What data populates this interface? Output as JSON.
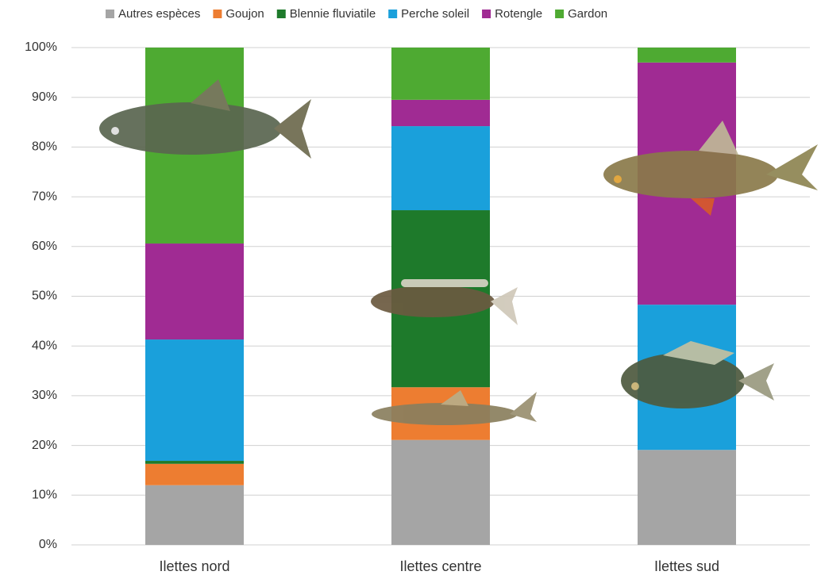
{
  "chart_data": {
    "type": "stacked_bar",
    "categories": [
      "Ilettes nord",
      "Ilettes centre",
      "Ilettes sud"
    ],
    "series": [
      {
        "name": "Autres espèces",
        "color": "#a5a5a5",
        "values": [
          12.0,
          21.1,
          19.1
        ]
      },
      {
        "name": "Goujon",
        "color": "#ed7d31",
        "values": [
          4.3,
          10.6,
          0
        ]
      },
      {
        "name": "Blennie fluviatile",
        "color": "#1e7a2b",
        "values": [
          0.6,
          35.6,
          0
        ]
      },
      {
        "name": "Perche soleil",
        "color": "#1aa0db",
        "values": [
          24.4,
          16.9,
          29.2
        ]
      },
      {
        "name": "Rotengle",
        "color": "#a02b93",
        "values": [
          19.3,
          5.3,
          48.7
        ]
      },
      {
        "name": "Gardon",
        "color": "#4eaa32",
        "values": [
          39.4,
          10.5,
          3.0
        ]
      }
    ],
    "ylim": [
      0,
      100
    ],
    "yticks": [
      {
        "value": 0,
        "label": "0%"
      },
      {
        "value": 10,
        "label": "10%"
      },
      {
        "value": 20,
        "label": "20%"
      },
      {
        "value": 30,
        "label": "30%"
      },
      {
        "value": 40,
        "label": "40%"
      },
      {
        "value": 50,
        "label": "50%"
      },
      {
        "value": 60,
        "label": "60%"
      },
      {
        "value": 70,
        "label": "70%"
      },
      {
        "value": 80,
        "label": "80%"
      },
      {
        "value": 90,
        "label": "90%"
      },
      {
        "value": 100,
        "label": "100%"
      }
    ],
    "grid": true,
    "legend": "top"
  }
}
